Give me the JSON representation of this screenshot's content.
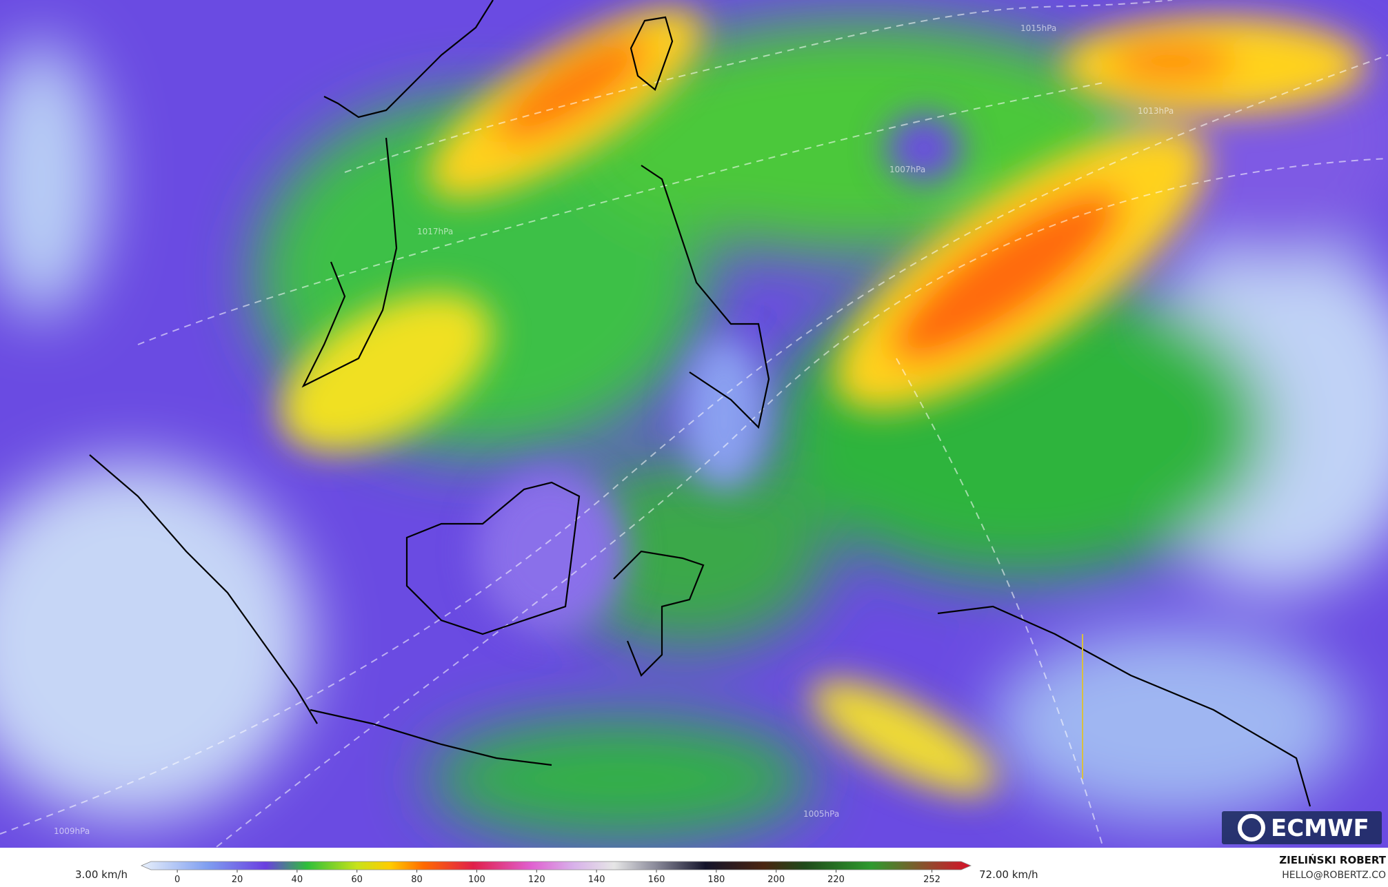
{
  "map": {
    "isobar_labels": [
      "1015hPa",
      "1013hPa",
      "1017hPa",
      "1009hPa",
      "1005hPa",
      "1007hPa"
    ],
    "logo": "ECMWF"
  },
  "colorbar": {
    "min_label": "3.00 km/h",
    "max_label": "72.00 km/h",
    "xlim": [
      -12,
      265
    ],
    "ticks": [
      0,
      20,
      40,
      60,
      80,
      100,
      120,
      140,
      160,
      180,
      200,
      220,
      252
    ]
  },
  "credit": {
    "name": "ZIELIŃSKI ROBERT",
    "email": "HELLO@ROBERTZ.CO"
  }
}
